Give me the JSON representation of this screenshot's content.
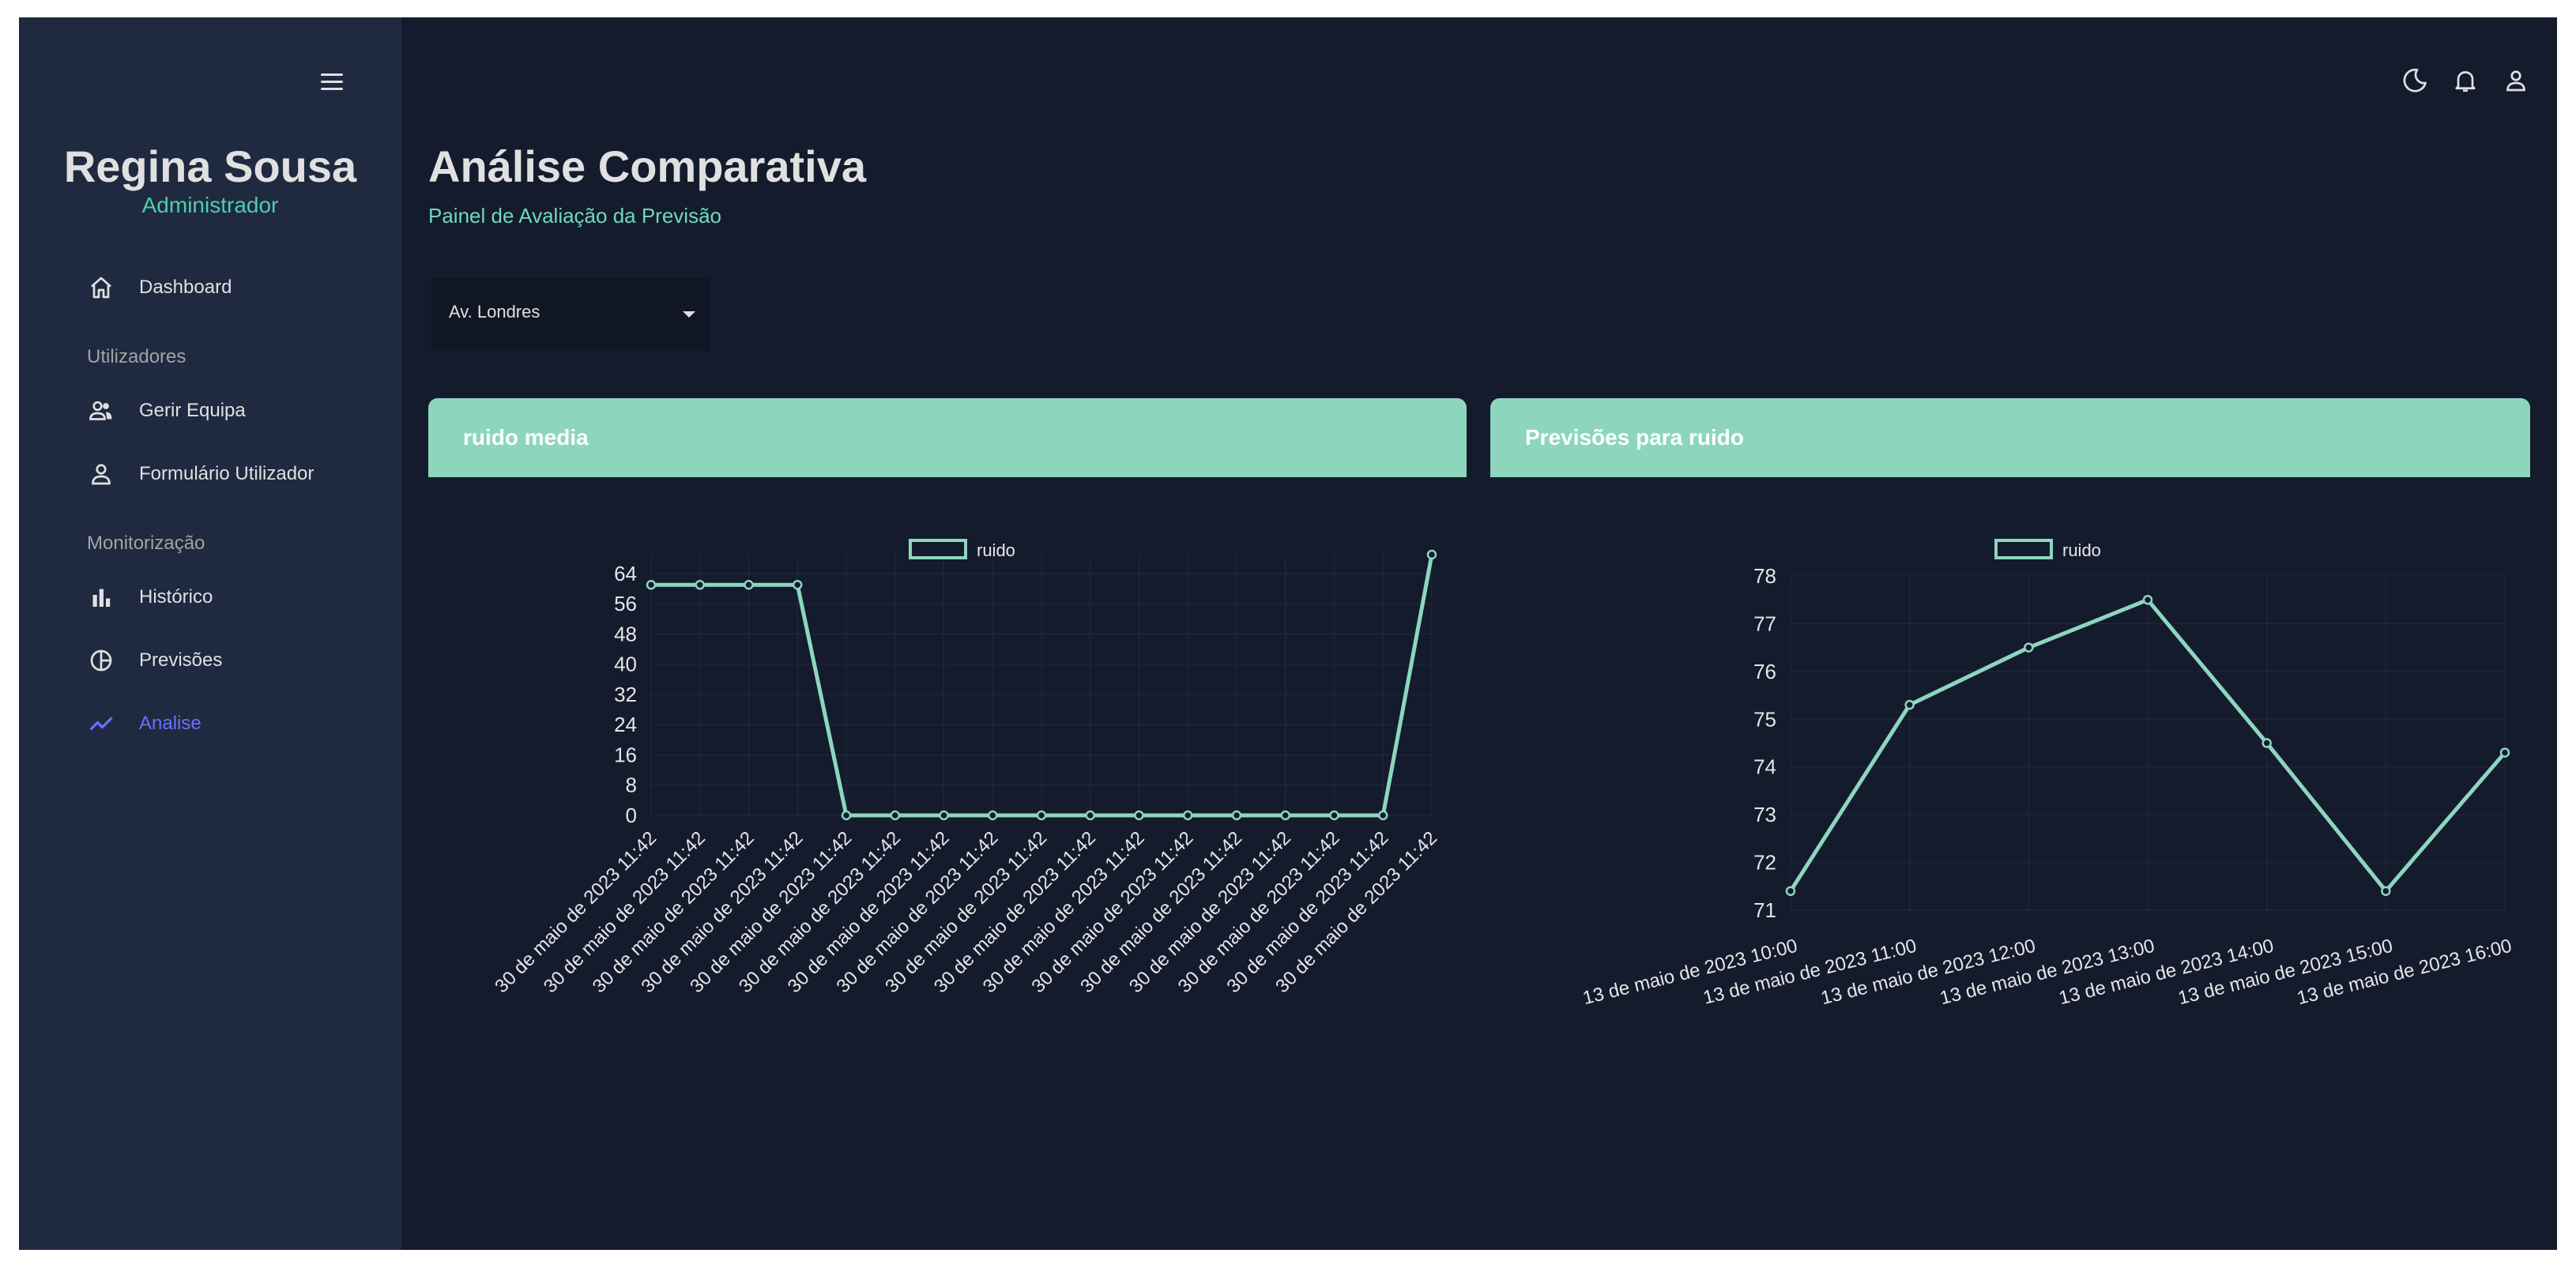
{
  "sidebar": {
    "user_name": "Regina Sousa",
    "user_role": "Administrador",
    "items": [
      {
        "label": "Dashboard",
        "icon": "home-icon"
      },
      {
        "label": "Gerir Equipa",
        "icon": "people-icon"
      },
      {
        "label": "Formulário Utilizador",
        "icon": "person-icon"
      },
      {
        "label": "Histórico",
        "icon": "bar-chart-icon"
      },
      {
        "label": "Previsões",
        "icon": "pie-chart-icon"
      },
      {
        "label": "Analise",
        "icon": "timeline-icon",
        "active": true
      }
    ],
    "sections": [
      "Utilizadores",
      "Monitorização"
    ]
  },
  "topbar": {
    "icons": [
      "dark-mode-icon",
      "notifications-icon",
      "person-icon"
    ]
  },
  "header": {
    "title": "Análise Comparativa",
    "subtitle": "Painel de Avaliação da Previsão"
  },
  "location_select": {
    "value": "Av. Londres"
  },
  "cards": [
    {
      "title": "ruido media"
    },
    {
      "title": "Previsões para ruido"
    }
  ],
  "colors": {
    "accent": "#70d8bd",
    "series": "#8dd6bd",
    "active": "#6870fa"
  },
  "chart_data": [
    {
      "type": "line",
      "legend": [
        "ruido"
      ],
      "categories": [
        "30 de maio de 2023 11:42",
        "30 de maio de 2023 11:42",
        "30 de maio de 2023 11:42",
        "30 de maio de 2023 11:42",
        "30 de maio de 2023 11:42",
        "30 de maio de 2023 11:42",
        "30 de maio de 2023 11:42",
        "30 de maio de 2023 11:42",
        "30 de maio de 2023 11:42",
        "30 de maio de 2023 11:42",
        "30 de maio de 2023 11:42",
        "30 de maio de 2023 11:42",
        "30 de maio de 2023 11:42",
        "30 de maio de 2023 11:42",
        "30 de maio de 2023 11:42",
        "30 de maio de 2023 11:42",
        "30 de maio de 2023 11:42"
      ],
      "series": [
        {
          "name": "ruido",
          "values": [
            61,
            61,
            61,
            61,
            0,
            0,
            0,
            0,
            0,
            0,
            0,
            0,
            0,
            0,
            0,
            0,
            69
          ]
        }
      ],
      "yticks": [
        0,
        8,
        16,
        24,
        32,
        40,
        48,
        56,
        64
      ],
      "ylim": [
        0,
        69
      ],
      "grid": true,
      "legend_position": "top"
    },
    {
      "type": "line",
      "legend": [
        "ruido"
      ],
      "categories": [
        "13 de maio de 2023 10:00",
        "13 de maio de 2023 11:00",
        "13 de maio de 2023 12:00",
        "13 de maio de 2023 13:00",
        "13 de maio de 2023 14:00",
        "13 de maio de 2023 15:00",
        "13 de maio de 2023 16:00"
      ],
      "series": [
        {
          "name": "ruido",
          "values": [
            71.4,
            75.3,
            76.5,
            77.5,
            74.5,
            71.4,
            74.3
          ]
        }
      ],
      "yticks": [
        71,
        72,
        73,
        74,
        75,
        76,
        77,
        78
      ],
      "ylim": [
        71,
        78
      ],
      "grid": true,
      "legend_position": "top"
    }
  ]
}
